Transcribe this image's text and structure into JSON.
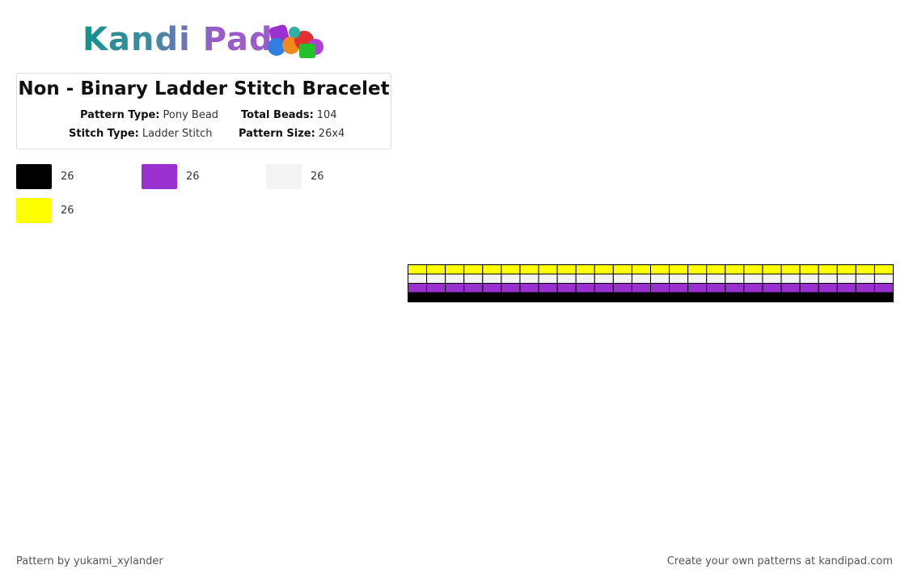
{
  "logo": "Kandi Pad",
  "header": {
    "title": "Non - Binary Ladder Stitch Bracelet",
    "info": [
      {
        "label": "Pattern Type:",
        "value": "Pony Bead"
      },
      {
        "label": "Total Beads:",
        "value": "104"
      },
      {
        "label": "Stitch Type:",
        "value": "Ladder Stitch"
      },
      {
        "label": "Pattern Size:",
        "value": "26x4"
      }
    ]
  },
  "colors": [
    {
      "color": "#000000",
      "count": 26
    },
    {
      "color": "#9b30d0",
      "count": 26
    },
    {
      "color": "#f4f4f4",
      "count": 26
    },
    {
      "color": "#ffff00",
      "count": 26
    }
  ],
  "pattern": {
    "columns": 26,
    "rows": [
      "#ffff00",
      "#f4f4f4",
      "#9b30d0",
      "#000000"
    ]
  },
  "footer": {
    "left": "Pattern by yukami_xylander",
    "right": "Create your own patterns at kandipad.com"
  }
}
